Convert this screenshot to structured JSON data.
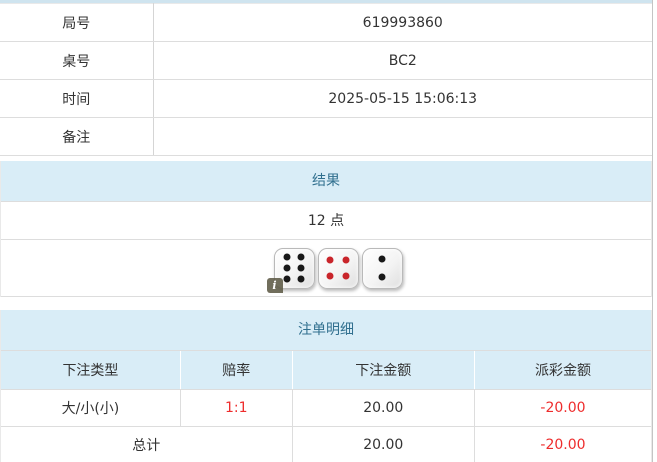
{
  "colors": {
    "panel_bg": "#d9edf7",
    "panel_text": "#31708f",
    "negative_red": "#ee2c2c",
    "top_strip": "#cfe4ef"
  },
  "info_table": {
    "rows": [
      {
        "label": "局号",
        "value": "619993860"
      },
      {
        "label": "桌号",
        "value": "BC2"
      },
      {
        "label": "时间",
        "value": "2025-05-15 15:06:13"
      },
      {
        "label": "备注",
        "value": ""
      }
    ]
  },
  "result": {
    "header": "结果",
    "points": "12 点",
    "dice": [
      {
        "value": 6,
        "color": "black"
      },
      {
        "value": 4,
        "color": "red"
      },
      {
        "value": 2,
        "color": "black"
      }
    ],
    "info_badge": "i"
  },
  "bets": {
    "header": "注单明细",
    "columns": [
      "下注类型",
      "赔率",
      "下注金额",
      "派彩金额"
    ],
    "rows": [
      {
        "type": "大/小(小)",
        "odds": "1:1",
        "amount": "20.00",
        "payout": "-20.00"
      }
    ],
    "total": {
      "label": "总计",
      "amount": "20.00",
      "payout": "-20.00"
    }
  }
}
